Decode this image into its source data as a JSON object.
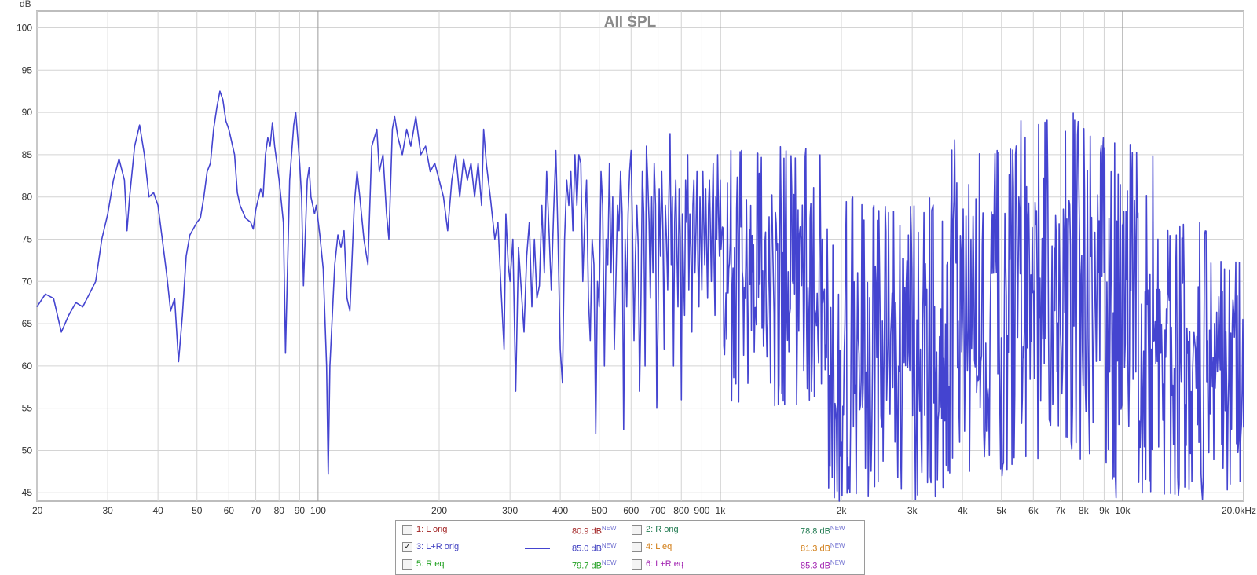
{
  "chart_data": {
    "type": "line",
    "title": "All SPL",
    "ylabel": "dB",
    "xlabel": "",
    "x_scale": "log",
    "xlim": [
      20,
      20000
    ],
    "ylim": [
      44,
      102
    ],
    "grid": true,
    "y_ticks": [
      "100",
      "95",
      "90",
      "85",
      "80",
      "75",
      "70",
      "65",
      "60",
      "55",
      "50",
      "45"
    ],
    "x_ticks": [
      {
        "value": 20,
        "label": "20"
      },
      {
        "value": 30,
        "label": "30"
      },
      {
        "value": 40,
        "label": "40"
      },
      {
        "value": 50,
        "label": "50"
      },
      {
        "value": 60,
        "label": "60"
      },
      {
        "value": 70,
        "label": "70"
      },
      {
        "value": 80,
        "label": "80"
      },
      {
        "value": 90,
        "label": "90"
      },
      {
        "value": 100,
        "label": "100"
      },
      {
        "value": 200,
        "label": "200"
      },
      {
        "value": 300,
        "label": "300"
      },
      {
        "value": 400,
        "label": "400"
      },
      {
        "value": 500,
        "label": "500"
      },
      {
        "value": 600,
        "label": "600"
      },
      {
        "value": 700,
        "label": "700"
      },
      {
        "value": 800,
        "label": "800"
      },
      {
        "value": 900,
        "label": "900"
      },
      {
        "value": 1000,
        "label": "1k"
      },
      {
        "value": 2000,
        "label": "2k"
      },
      {
        "value": 3000,
        "label": "3k"
      },
      {
        "value": 4000,
        "label": "4k"
      },
      {
        "value": 5000,
        "label": "5k"
      },
      {
        "value": 6000,
        "label": "6k"
      },
      {
        "value": 7000,
        "label": "7k"
      },
      {
        "value": 8000,
        "label": "8k"
      },
      {
        "value": 9000,
        "label": "9k"
      },
      {
        "value": 10000,
        "label": "10k"
      },
      {
        "value": 20000,
        "label": "20.0kHz"
      }
    ],
    "series": [
      {
        "name": "3: L+R orig",
        "color": "#4444d0",
        "points": [
          [
            20,
            67
          ],
          [
            21,
            68.5
          ],
          [
            22,
            68
          ],
          [
            23,
            64
          ],
          [
            24,
            66
          ],
          [
            25,
            67.5
          ],
          [
            26,
            67
          ],
          [
            27,
            68.5
          ],
          [
            28,
            70
          ],
          [
            29,
            75
          ],
          [
            30,
            78
          ],
          [
            31,
            82
          ],
          [
            32,
            84.5
          ],
          [
            33,
            82
          ],
          [
            33.5,
            76
          ],
          [
            34,
            80
          ],
          [
            35,
            86
          ],
          [
            36,
            88.5
          ],
          [
            37,
            85
          ],
          [
            38,
            80
          ],
          [
            39,
            80.5
          ],
          [
            40,
            79
          ],
          [
            41,
            75
          ],
          [
            42,
            71
          ],
          [
            43,
            66.5
          ],
          [
            44,
            68
          ],
          [
            45,
            60.5
          ],
          [
            46,
            66
          ],
          [
            47,
            73
          ],
          [
            48,
            75.5
          ],
          [
            50,
            77
          ],
          [
            51,
            77.5
          ],
          [
            52,
            80
          ],
          [
            53,
            83
          ],
          [
            54,
            84
          ],
          [
            55,
            88
          ],
          [
            56,
            90.5
          ],
          [
            57,
            92.5
          ],
          [
            58,
            91.5
          ],
          [
            59,
            89
          ],
          [
            60,
            88
          ],
          [
            62,
            85
          ],
          [
            63,
            80.5
          ],
          [
            64,
            79
          ],
          [
            66,
            77.5
          ],
          [
            68,
            77
          ],
          [
            69,
            76.2
          ],
          [
            70,
            78.5
          ],
          [
            72,
            81
          ],
          [
            73,
            80
          ],
          [
            74,
            85
          ],
          [
            75,
            87
          ],
          [
            76,
            86
          ],
          [
            77,
            88.8
          ],
          [
            78,
            86
          ],
          [
            80,
            82
          ],
          [
            82,
            77
          ],
          [
            83,
            61.5
          ],
          [
            85,
            82
          ],
          [
            87,
            88.5
          ],
          [
            88,
            90
          ],
          [
            89,
            87
          ],
          [
            90,
            84
          ],
          [
            91,
            80
          ],
          [
            92,
            69.5
          ],
          [
            94,
            82
          ],
          [
            95,
            83.5
          ],
          [
            96,
            80
          ],
          [
            98,
            78
          ],
          [
            99,
            79
          ],
          [
            101,
            75.5
          ],
          [
            103,
            71.5
          ],
          [
            105,
            60
          ],
          [
            106,
            47.2
          ],
          [
            107,
            60
          ],
          [
            110,
            72
          ],
          [
            112,
            75.5
          ],
          [
            114,
            74
          ],
          [
            116,
            76
          ],
          [
            118,
            68
          ],
          [
            120,
            66.5
          ],
          [
            123,
            79
          ],
          [
            125,
            83
          ],
          [
            127,
            80
          ],
          [
            130,
            75
          ],
          [
            133,
            72
          ],
          [
            136,
            86
          ],
          [
            140,
            88
          ],
          [
            142,
            83
          ],
          [
            145,
            85
          ],
          [
            148,
            78
          ],
          [
            150,
            75
          ],
          [
            153,
            88
          ],
          [
            155,
            89.5
          ],
          [
            158,
            87
          ],
          [
            162,
            85
          ],
          [
            166,
            88
          ],
          [
            170,
            86
          ],
          [
            175,
            89.5
          ],
          [
            180,
            85
          ],
          [
            185,
            86
          ],
          [
            190,
            83
          ],
          [
            195,
            84
          ],
          [
            200,
            82
          ],
          [
            205,
            80
          ],
          [
            210,
            76
          ],
          [
            215,
            82
          ],
          [
            220,
            85
          ],
          [
            225,
            80
          ],
          [
            230,
            84.5
          ],
          [
            235,
            82
          ],
          [
            240,
            84
          ],
          [
            245,
            80
          ],
          [
            250,
            84
          ],
          [
            255,
            79
          ],
          [
            258,
            88
          ],
          [
            262,
            84
          ],
          [
            268,
            80
          ],
          [
            275,
            75
          ],
          [
            280,
            77
          ],
          [
            285,
            69
          ],
          [
            290,
            62
          ],
          [
            293,
            78
          ],
          [
            297,
            72
          ],
          [
            300,
            70
          ],
          [
            305,
            75
          ],
          [
            310,
            57
          ],
          [
            315,
            74
          ],
          [
            320,
            69
          ],
          [
            325,
            64
          ],
          [
            330,
            73
          ],
          [
            335,
            77
          ],
          [
            340,
            67
          ],
          [
            345,
            75
          ],
          [
            350,
            68
          ],
          [
            355,
            69.5
          ],
          [
            360,
            79
          ],
          [
            365,
            71
          ],
          [
            370,
            83
          ],
          [
            375,
            76
          ],
          [
            380,
            69
          ],
          [
            385,
            78
          ],
          [
            390,
            85.5
          ],
          [
            395,
            75
          ],
          [
            400,
            62
          ],
          [
            405,
            58
          ],
          [
            410,
            75
          ],
          [
            415,
            82
          ],
          [
            420,
            79
          ],
          [
            425,
            83
          ],
          [
            430,
            76
          ],
          [
            435,
            85
          ],
          [
            440,
            79
          ],
          [
            445,
            85
          ],
          [
            450,
            84
          ],
          [
            455,
            70
          ],
          [
            460,
            77
          ],
          [
            465,
            82
          ],
          [
            470,
            68
          ],
          [
            475,
            63
          ],
          [
            480,
            75
          ],
          [
            485,
            72
          ],
          [
            490,
            52
          ],
          [
            495,
            70
          ],
          [
            500,
            67
          ],
          [
            505,
            83
          ],
          [
            510,
            79
          ],
          [
            515,
            60
          ],
          [
            520,
            75
          ],
          [
            525,
            72
          ],
          [
            530,
            84
          ],
          [
            535,
            71
          ],
          [
            540,
            80
          ],
          [
            545,
            62
          ],
          [
            550,
            70
          ],
          [
            555,
            79
          ],
          [
            560,
            76
          ],
          [
            565,
            83
          ],
          [
            570,
            78
          ],
          [
            575,
            52.5
          ],
          [
            580,
            75
          ],
          [
            585,
            67
          ],
          [
            590,
            78
          ],
          [
            595,
            83
          ],
          [
            600,
            85.5
          ],
          [
            605,
            76
          ],
          [
            610,
            63
          ],
          [
            615,
            73
          ],
          [
            620,
            79
          ],
          [
            625,
            74
          ],
          [
            630,
            57
          ],
          [
            635,
            68
          ],
          [
            640,
            83
          ],
          [
            645,
            78
          ],
          [
            650,
            60
          ],
          [
            655,
            86
          ],
          [
            660,
            82
          ],
          [
            665,
            77
          ],
          [
            670,
            68
          ],
          [
            675,
            80
          ],
          [
            680,
            71
          ],
          [
            685,
            84
          ],
          [
            690,
            79
          ],
          [
            695,
            55
          ],
          [
            700,
            65
          ],
          [
            705,
            81
          ],
          [
            710,
            73
          ],
          [
            715,
            83
          ],
          [
            720,
            76
          ],
          [
            725,
            62
          ],
          [
            730,
            79
          ],
          [
            735,
            75
          ],
          [
            740,
            69
          ],
          [
            745,
            80
          ],
          [
            750,
            87.5
          ],
          [
            755,
            72
          ],
          [
            760,
            80
          ],
          [
            765,
            60
          ],
          [
            770,
            77
          ],
          [
            775,
            82
          ],
          [
            780,
            74
          ],
          [
            785,
            67
          ],
          [
            790,
            81
          ],
          [
            795,
            75
          ],
          [
            800,
            56
          ],
          [
            805,
            78
          ],
          [
            810,
            71
          ],
          [
            815,
            66
          ],
          [
            820,
            82
          ],
          [
            825,
            77
          ],
          [
            830,
            85
          ],
          [
            835,
            69
          ],
          [
            840,
            78
          ],
          [
            845,
            74
          ],
          [
            850,
            64
          ],
          [
            855,
            79
          ],
          [
            860,
            82
          ],
          [
            865,
            71
          ],
          [
            870,
            76
          ],
          [
            875,
            83
          ],
          [
            880,
            72
          ],
          [
            885,
            67
          ],
          [
            890,
            80
          ],
          [
            895,
            75
          ],
          [
            900,
            69
          ],
          [
            905,
            83
          ],
          [
            910,
            77
          ],
          [
            915,
            72
          ],
          [
            920,
            81
          ],
          [
            925,
            74
          ],
          [
            930,
            68
          ],
          [
            935,
            79
          ],
          [
            940,
            82
          ],
          [
            945,
            76
          ],
          [
            950,
            70
          ],
          [
            955,
            78
          ],
          [
            960,
            84
          ],
          [
            965,
            72
          ],
          [
            970,
            66
          ],
          [
            975,
            80
          ],
          [
            980,
            75
          ],
          [
            985,
            85
          ],
          [
            990,
            78
          ],
          [
            995,
            73
          ],
          [
            1000,
            82
          ]
        ],
        "noise_band": {
          "comment": "dense high-frequency ripple region",
          "segments": [
            {
              "from": 1000,
              "to": 1800,
              "low": 55,
              "high": 86
            },
            {
              "from": 1800,
              "to": 2600,
              "low": 44,
              "high": 80
            },
            {
              "from": 2600,
              "to": 3600,
              "low": 44,
              "high": 80
            },
            {
              "from": 3600,
              "to": 5500,
              "low": 47,
              "high": 87
            },
            {
              "from": 5500,
              "to": 8500,
              "low": 49,
              "high": 90
            },
            {
              "from": 8500,
              "to": 12000,
              "low": 44,
              "high": 87
            },
            {
              "from": 12000,
              "to": 17000,
              "low": 44,
              "high": 77
            },
            {
              "from": 17000,
              "to": 20000,
              "low": 44,
              "high": 74
            }
          ]
        }
      }
    ]
  },
  "legend": {
    "items": [
      {
        "label": "1: L orig",
        "value": "80.9 dB",
        "badge": "NEW",
        "color": "#a02020",
        "checked": false
      },
      {
        "label": "2: R orig",
        "value": "78.8 dB",
        "badge": "NEW",
        "color": "#207a50",
        "checked": false
      },
      {
        "label": "3: L+R orig",
        "value": "85.0 dB",
        "badge": "NEW",
        "color": "#4040c0",
        "checked": true,
        "checkmark": "✓"
      },
      {
        "label": "4: L eq",
        "value": "81.3 dB",
        "badge": "NEW",
        "color": "#d07a10",
        "checked": false
      },
      {
        "label": "5: R eq",
        "value": "79.7 dB",
        "badge": "NEW",
        "color": "#20a020",
        "checked": false
      },
      {
        "label": "6: L+R eq",
        "value": "85.3 dB",
        "badge": "NEW",
        "color": "#a020b0",
        "checked": false
      }
    ]
  }
}
